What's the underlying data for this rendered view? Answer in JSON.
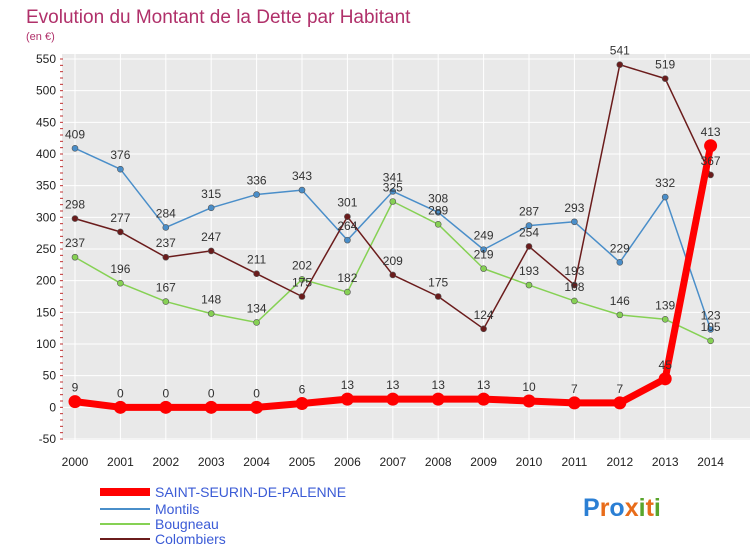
{
  "chart_data": {
    "type": "line",
    "title": "Evolution du Montant de la Dette par Habitant",
    "subtitle": "(en €)",
    "categories": [
      "2000",
      "2001",
      "2002",
      "2003",
      "2004",
      "2005",
      "2006",
      "2007",
      "2008",
      "2009",
      "2010",
      "2011",
      "2012",
      "2013",
      "2014"
    ],
    "ylim": [
      -50,
      550
    ],
    "yticks": [
      -50,
      0,
      50,
      100,
      150,
      200,
      250,
      300,
      350,
      400,
      450,
      500,
      550
    ],
    "grid": true,
    "legend_position": "bottom-left",
    "series": [
      {
        "name": "SAINT-SEURIN-DE-PALENNE",
        "color": "#ff0000",
        "emphasis": true,
        "values": [
          9,
          0,
          0,
          0,
          0,
          6,
          13,
          13,
          13,
          13,
          10,
          7,
          7,
          45,
          413
        ]
      },
      {
        "name": "Montils",
        "color": "#4a8ec9",
        "values": [
          409,
          376,
          284,
          315,
          336,
          343,
          264,
          341,
          308,
          249,
          287,
          293,
          229,
          332,
          123
        ]
      },
      {
        "name": "Bougneau",
        "color": "#86d154",
        "values": [
          237,
          196,
          167,
          148,
          134,
          202,
          182,
          325,
          289,
          219,
          193,
          168,
          146,
          139,
          105
        ]
      },
      {
        "name": "Colombiers",
        "color": "#6b1c1c",
        "values": [
          298,
          277,
          237,
          247,
          211,
          175,
          301,
          209,
          175,
          124,
          254,
          193,
          541,
          519,
          367
        ]
      }
    ]
  },
  "logo": {
    "text": "Proxiti",
    "letters": [
      "P",
      "r",
      "o",
      "x",
      "i",
      "t",
      "i"
    ],
    "colors": [
      "#2b7fd4",
      "#e86c1a",
      "#2b7fd4",
      "#e86c1a",
      "#59a52c",
      "#e86c1a",
      "#59a52c"
    ]
  }
}
